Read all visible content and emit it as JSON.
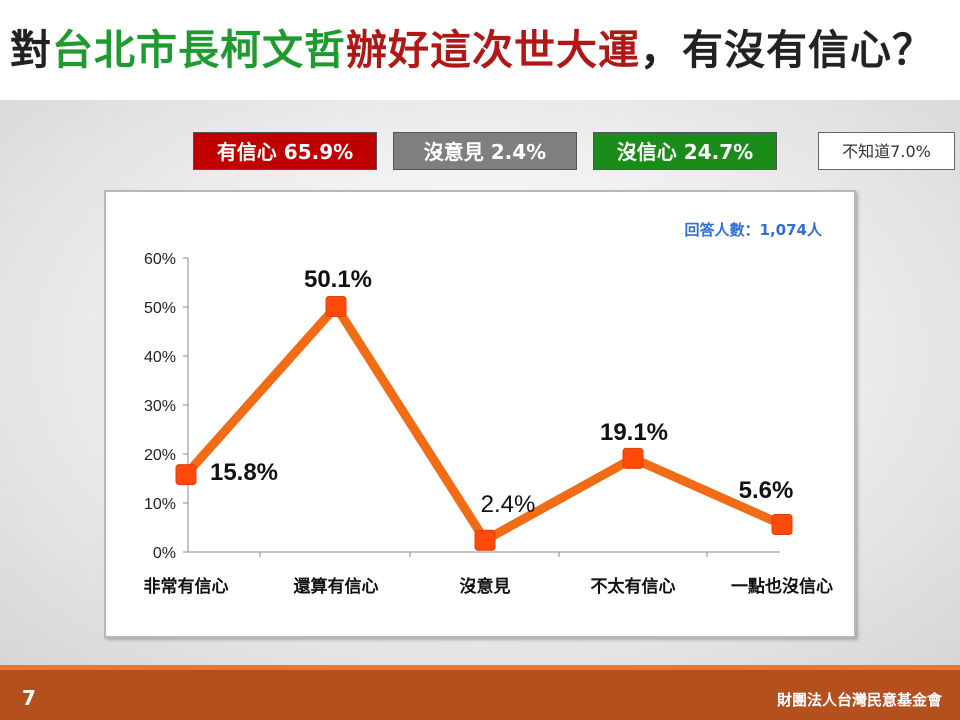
{
  "slide": {
    "title_parts": [
      {
        "text": "對",
        "color": "#222222"
      },
      {
        "text": "台北市長柯文哲",
        "color": "#1e9a2e"
      },
      {
        "text": "辦好這次世大運",
        "color": "#b01818"
      },
      {
        "text": "，有沒有信心？",
        "color": "#222222"
      }
    ],
    "page_number": "7",
    "organization": "財團法人台灣民意基金會"
  },
  "badges": [
    {
      "label": "有信心 65.9%",
      "bg": "#c00000"
    },
    {
      "label": "沒意見 2.4%",
      "bg": "#7f7f7f"
    },
    {
      "label": "沒信心 24.7%",
      "bg": "#1a8c1a"
    },
    {
      "label": "不知道7.0%",
      "bg": "#ffffff"
    }
  ],
  "chart_data": {
    "type": "line",
    "title": "",
    "note": "回答人數：1,074人",
    "categories": [
      "非常有信心",
      "還算有信心",
      "沒意見",
      "不太有信心",
      "一點也沒信心"
    ],
    "series": [
      {
        "values": [
          15.8,
          50.1,
          2.4,
          19.1,
          5.6
        ],
        "color": "#f26b15"
      }
    ],
    "data_labels": [
      "15.8%",
      "50.1%",
      "2.4%",
      "19.1%",
      "5.6%"
    ],
    "y_ticks": [
      "0%",
      "10%",
      "20%",
      "30%",
      "40%",
      "50%",
      "60%"
    ],
    "ylim": [
      0,
      60
    ],
    "grid": false,
    "legend": "none"
  }
}
